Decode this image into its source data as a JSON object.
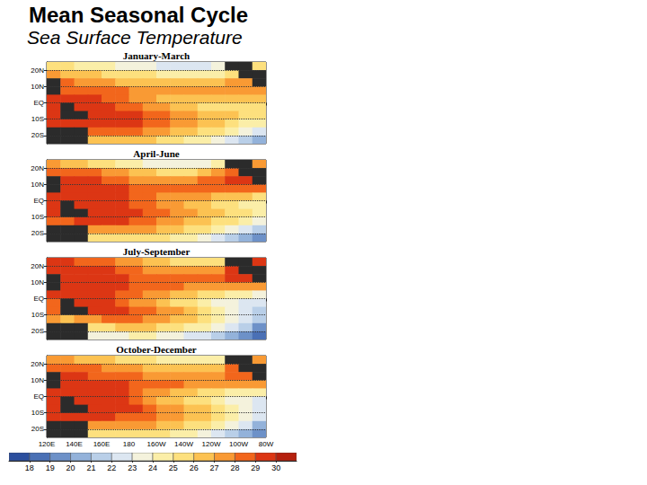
{
  "title": "Mean Seasonal Cycle",
  "subtitle": "Sea Surface Temperature",
  "colorbar": {
    "range": [
      17,
      31
    ],
    "ticks": [
      18,
      19,
      20,
      21,
      22,
      23,
      24,
      25,
      26,
      27,
      28,
      29,
      30
    ],
    "colors": [
      "#2c4f9e",
      "#4a70b5",
      "#6d91c8",
      "#93b2da",
      "#b9cfe8",
      "#dce6f1",
      "#f4f2dc",
      "#fbeea8",
      "#fde07e",
      "#fcc252",
      "#f99a34",
      "#f2661c",
      "#dc3614",
      "#b5200e"
    ]
  },
  "chart_data": [
    {
      "type": "heatmap",
      "title": "January-March",
      "x": [
        125,
        135,
        145,
        155,
        165,
        175,
        185,
        195,
        205,
        215,
        225,
        235,
        245,
        255,
        265,
        275
      ],
      "y": [
        22.5,
        17.5,
        12.5,
        7.5,
        2.5,
        -2.5,
        -7.5,
        -12.5,
        -17.5,
        -22.5
      ],
      "cells": [
        [
          25.5,
          25,
          24.5,
          24,
          24,
          23.5,
          23.5,
          23,
          22.5,
          22.5,
          22.5,
          22.5,
          23,
          null,
          null,
          25
        ],
        [
          27,
          26.5,
          26.5,
          26,
          25.5,
          25.5,
          25.5,
          25,
          24.5,
          24,
          24,
          24,
          24.5,
          25.5,
          null,
          null
        ],
        [
          null,
          28,
          27.5,
          27.5,
          27,
          26.5,
          26.5,
          26.5,
          26,
          26,
          26,
          26,
          26.5,
          27,
          27.5,
          null
        ],
        [
          null,
          28.5,
          28.5,
          28.5,
          28,
          28,
          27.5,
          27.5,
          27.5,
          27.5,
          27.5,
          27.5,
          27.5,
          27.5,
          27.5,
          27
        ],
        [
          29,
          29,
          29,
          29,
          28.5,
          28,
          27.5,
          27,
          26.5,
          26.5,
          26,
          26,
          26,
          26,
          26,
          26
        ],
        [
          29.5,
          null,
          29.5,
          29.5,
          29,
          28.5,
          28,
          27.5,
          27,
          26.5,
          26,
          25.5,
          25.5,
          25.5,
          25.5,
          25.5
        ],
        [
          29.5,
          null,
          null,
          29.5,
          29.5,
          29.5,
          29,
          28.5,
          28,
          27.5,
          27,
          26.5,
          26,
          26,
          25.5,
          25
        ],
        [
          29.5,
          29.5,
          29.5,
          29,
          29,
          29,
          29,
          28.5,
          28,
          27.5,
          27,
          26.5,
          26,
          25,
          24.5,
          24
        ],
        [
          null,
          null,
          null,
          28,
          28,
          28,
          28,
          27.5,
          27,
          26.5,
          26,
          25.5,
          25,
          24,
          23,
          22
        ],
        [
          null,
          null,
          null,
          26.5,
          26,
          26,
          26,
          26,
          25.5,
          25,
          24.5,
          24,
          23,
          22,
          21,
          20
        ]
      ],
      "xlim": [
        120,
        280
      ],
      "ylim": [
        -25,
        25
      ],
      "xticks": [
        120,
        140,
        160,
        180,
        200,
        220,
        240,
        260,
        280
      ],
      "yticks": [
        {
          "value": 20,
          "label": "20N"
        },
        {
          "value": 10,
          "label": "10N"
        },
        {
          "value": 0,
          "label": "EQ"
        },
        {
          "value": -10,
          "label": "10S"
        },
        {
          "value": -20,
          "label": "20S"
        }
      ],
      "grid": true,
      "tick_labels": "y"
    },
    {
      "type": "heatmap",
      "title": "April-June",
      "x": [
        125,
        135,
        145,
        155,
        165,
        175,
        185,
        195,
        205,
        215,
        225,
        235,
        245,
        255,
        265,
        275
      ],
      "y": [
        22.5,
        17.5,
        12.5,
        7.5,
        2.5,
        -2.5,
        -7.5,
        -12.5,
        -17.5,
        -22.5
      ],
      "cells": [
        [
          27,
          26.5,
          26,
          25.5,
          25,
          24.5,
          24,
          23.5,
          23,
          23,
          23,
          23,
          24,
          null,
          null,
          27
        ],
        [
          28.5,
          28.5,
          28,
          28,
          27.5,
          27,
          26.5,
          26,
          25.5,
          25.5,
          25.5,
          26,
          27,
          28.5,
          null,
          null
        ],
        [
          null,
          29,
          29,
          29,
          28.5,
          28,
          27.5,
          27.5,
          27.5,
          27.5,
          27.5,
          28,
          28.5,
          29,
          29,
          null
        ],
        [
          null,
          29.5,
          29.5,
          29.5,
          29,
          29,
          28.5,
          28.5,
          28,
          28,
          28,
          28,
          28,
          28.5,
          28.5,
          28
        ],
        [
          29.5,
          29.5,
          29.5,
          29.5,
          29.5,
          29,
          28.5,
          28,
          27.5,
          27.5,
          27,
          27,
          26.5,
          26.5,
          26,
          25.5
        ],
        [
          29.5,
          null,
          29.5,
          29.5,
          29.5,
          29,
          28.5,
          28,
          27.5,
          27,
          26.5,
          26,
          25.5,
          25,
          24.5,
          24.5
        ],
        [
          29,
          null,
          null,
          29.5,
          29.5,
          29.5,
          29,
          28.5,
          28,
          27.5,
          27,
          26.5,
          26,
          25.5,
          25,
          24
        ],
        [
          28.5,
          28.5,
          29,
          29,
          29,
          29,
          28.5,
          28,
          27.5,
          27,
          26.5,
          26,
          25.5,
          25,
          24,
          23
        ],
        [
          null,
          null,
          null,
          27,
          27,
          27,
          27,
          27,
          26.5,
          26,
          25.5,
          25,
          24.5,
          23.5,
          22.5,
          21
        ],
        [
          null,
          null,
          null,
          25,
          25,
          25,
          25,
          25,
          25,
          24.5,
          24,
          23,
          22.5,
          21.5,
          20.5,
          19
        ]
      ],
      "xlim": [
        120,
        280
      ],
      "ylim": [
        -25,
        25
      ],
      "xticks": [
        120,
        140,
        160,
        180,
        200,
        220,
        240,
        260,
        280
      ],
      "yticks": [
        {
          "value": 20,
          "label": "20N"
        },
        {
          "value": 10,
          "label": "10N"
        },
        {
          "value": 0,
          "label": "EQ"
        },
        {
          "value": -10,
          "label": "10S"
        },
        {
          "value": -20,
          "label": "20S"
        }
      ],
      "grid": true,
      "tick_labels": "y"
    },
    {
      "type": "heatmap",
      "title": "July-September",
      "x": [
        125,
        135,
        145,
        155,
        165,
        175,
        185,
        195,
        205,
        215,
        225,
        235,
        245,
        255,
        265,
        275
      ],
      "y": [
        22.5,
        17.5,
        12.5,
        7.5,
        2.5,
        -2.5,
        -7.5,
        -12.5,
        -17.5,
        -22.5
      ],
      "cells": [
        [
          29,
          29,
          28.5,
          28.5,
          28,
          27.5,
          27,
          26.5,
          26,
          25.5,
          25,
          25,
          25.5,
          null,
          null,
          29
        ],
        [
          29.5,
          29.5,
          29.5,
          29,
          29,
          28.5,
          28,
          27.5,
          27,
          27,
          27,
          27,
          27.5,
          29,
          null,
          null
        ],
        [
          null,
          29.5,
          29.5,
          29.5,
          29,
          29,
          28.5,
          28.5,
          28,
          28,
          28,
          28,
          28.5,
          29,
          29,
          null
        ],
        [
          null,
          29.5,
          29.5,
          29.5,
          29.5,
          29,
          28.5,
          28.5,
          28,
          28,
          27.5,
          27.5,
          27.5,
          27.5,
          27.5,
          27
        ],
        [
          29,
          29,
          29.5,
          29.5,
          29,
          28.5,
          28,
          27.5,
          27,
          26.5,
          26,
          25.5,
          25,
          24.5,
          24,
          23.5
        ],
        [
          28.5,
          null,
          29.5,
          29.5,
          29,
          28.5,
          27.5,
          27,
          26.5,
          25.5,
          25,
          24,
          23.5,
          23,
          22.5,
          22
        ],
        [
          28,
          null,
          null,
          29,
          29,
          29,
          28.5,
          28,
          27.5,
          27,
          26,
          25,
          24.5,
          23.5,
          22.5,
          21.5
        ],
        [
          27,
          26.5,
          27,
          27.5,
          28,
          28,
          28,
          27.5,
          27,
          26.5,
          26,
          25,
          24,
          23,
          22,
          21
        ],
        [
          null,
          null,
          null,
          25,
          25.5,
          26,
          26,
          26,
          25.5,
          25,
          24.5,
          24,
          23,
          22,
          21,
          19.5
        ],
        [
          null,
          null,
          null,
          23,
          23,
          23.5,
          24,
          24,
          23.5,
          23,
          22.5,
          22,
          21,
          20,
          19,
          18
        ]
      ],
      "xlim": [
        120,
        280
      ],
      "ylim": [
        -25,
        25
      ],
      "xticks": [
        120,
        140,
        160,
        180,
        200,
        220,
        240,
        260,
        280
      ],
      "yticks": [
        {
          "value": 20,
          "label": "20N"
        },
        {
          "value": 10,
          "label": "10N"
        },
        {
          "value": 0,
          "label": "EQ"
        },
        {
          "value": -10,
          "label": "10S"
        },
        {
          "value": -20,
          "label": "20S"
        }
      ],
      "grid": true,
      "tick_labels": "y"
    },
    {
      "type": "heatmap",
      "title": "October-December",
      "x": [
        125,
        135,
        145,
        155,
        165,
        175,
        185,
        195,
        205,
        215,
        225,
        235,
        245,
        255,
        265,
        275
      ],
      "y": [
        22.5,
        17.5,
        12.5,
        7.5,
        2.5,
        -2.5,
        -7.5,
        -12.5,
        -17.5,
        -22.5
      ],
      "cells": [
        [
          27,
          27,
          26.5,
          26.5,
          26,
          25.5,
          25.5,
          25,
          24.5,
          24,
          24,
          24,
          24.5,
          null,
          null,
          27
        ],
        [
          28.5,
          28.5,
          28,
          28,
          27.5,
          27,
          27,
          26.5,
          26,
          26,
          26,
          26,
          26.5,
          28,
          null,
          null
        ],
        [
          null,
          29,
          29,
          28.5,
          28.5,
          28,
          28,
          27.5,
          27.5,
          27.5,
          27.5,
          27.5,
          27.5,
          28,
          28.5,
          null
        ],
        [
          null,
          29.5,
          29.5,
          29.5,
          29,
          29,
          28.5,
          28.5,
          28,
          28,
          27.5,
          27.5,
          27.5,
          27.5,
          27,
          27
        ],
        [
          29.5,
          29.5,
          29.5,
          29.5,
          29.5,
          29,
          28.5,
          27.5,
          27,
          26.5,
          26,
          25.5,
          25,
          24.5,
          24,
          24
        ],
        [
          29.5,
          null,
          29.5,
          29.5,
          29.5,
          29,
          28.5,
          27.5,
          26.5,
          26,
          25.5,
          25,
          24.5,
          23.5,
          23,
          22.5
        ],
        [
          29.5,
          null,
          null,
          29.5,
          29.5,
          29.5,
          29,
          28.5,
          27.5,
          27,
          26.5,
          26,
          25,
          24,
          23.5,
          22.5
        ],
        [
          29,
          29,
          29,
          29,
          29,
          28.5,
          28.5,
          28,
          27.5,
          27,
          26.5,
          26,
          25,
          24,
          23,
          22
        ],
        [
          null,
          null,
          null,
          27,
          27,
          27,
          27,
          27,
          26.5,
          26,
          25.5,
          25,
          24,
          23,
          22,
          20.5
        ],
        [
          null,
          null,
          null,
          25,
          25,
          25.5,
          25.5,
          25.5,
          25,
          24.5,
          24,
          23,
          22,
          21,
          20,
          19
        ]
      ],
      "xlim": [
        120,
        280
      ],
      "ylim": [
        -25,
        25
      ],
      "xticks": [
        {
          "value": 120,
          "label": "120E"
        },
        {
          "value": 140,
          "label": "140E"
        },
        {
          "value": 160,
          "label": "160E"
        },
        180,
        {
          "value": 200,
          "label": "160W"
        },
        {
          "value": 220,
          "label": "140W"
        },
        {
          "value": 240,
          "label": "120W"
        },
        {
          "value": 260,
          "label": "100W"
        },
        {
          "value": 280,
          "label": "80W"
        }
      ],
      "yticks": [
        {
          "value": 20,
          "label": "20N"
        },
        {
          "value": 10,
          "label": "10N"
        },
        {
          "value": 0,
          "label": "EQ"
        },
        {
          "value": -10,
          "label": "10S"
        },
        {
          "value": -20,
          "label": "20S"
        }
      ],
      "grid": true,
      "tick_labels": true
    }
  ]
}
